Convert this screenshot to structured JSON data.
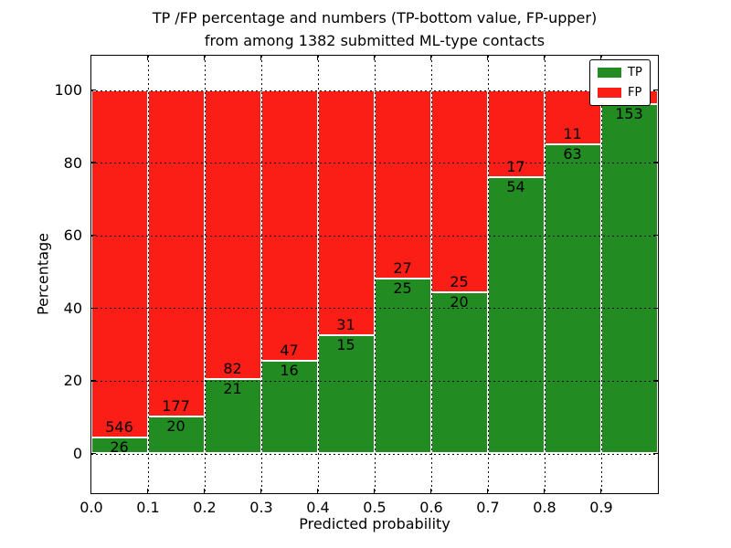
{
  "title": {
    "line1": "TP /FP percentage and numbers (TP-bottom value, FP-upper)",
    "line2": "from among 1382 submitted ML-type contacts"
  },
  "axes": {
    "xlabel": "Predicted probability",
    "ylabel": "Percentage",
    "x_tick_labels": [
      "0.0",
      "0.1",
      "0.2",
      "0.3",
      "0.4",
      "0.5",
      "0.6",
      "0.7",
      "0.8",
      "0.9"
    ],
    "y_tick_labels": [
      "0",
      "20",
      "40",
      "60",
      "80",
      "100"
    ],
    "y_tick_values": [
      0,
      20,
      40,
      60,
      80,
      100
    ]
  },
  "legend": {
    "items": [
      {
        "label": "TP",
        "color": "#228b22"
      },
      {
        "label": "FP",
        "color": "#fb1e16"
      }
    ]
  },
  "colors": {
    "tp": "#228b22",
    "fp": "#fb1e16",
    "grid": "#000000",
    "bar_edge": "#ffffff",
    "background": "#ffffff"
  },
  "chart_data": {
    "type": "bar",
    "stacked": true,
    "normalized": "percent",
    "title": "TP /FP percentage and numbers (TP-bottom value, FP-upper) from among 1382 submitted ML-type contacts",
    "xlabel": "Predicted probability",
    "ylabel": "Percentage",
    "x_bin_edges": [
      0.0,
      0.1,
      0.2,
      0.3,
      0.4,
      0.5,
      0.6,
      0.7,
      0.8,
      0.9,
      1.0
    ],
    "categories": [
      "0.0-0.1",
      "0.1-0.2",
      "0.2-0.3",
      "0.3-0.4",
      "0.4-0.5",
      "0.5-0.6",
      "0.6-0.7",
      "0.7-0.8",
      "0.8-0.9",
      "0.9-1.0"
    ],
    "series": [
      {
        "name": "TP",
        "values": [
          26,
          20,
          21,
          16,
          15,
          25,
          20,
          54,
          63,
          153
        ]
      },
      {
        "name": "FP",
        "values": [
          546,
          177,
          82,
          47,
          31,
          27,
          25,
          17,
          11,
          6
        ]
      }
    ],
    "tp_percent": [
      4.5,
      10.2,
      20.4,
      25.4,
      32.6,
      48.1,
      44.4,
      76.1,
      85.1,
      96.2
    ],
    "tp_labels": [
      "26",
      "20",
      "21",
      "16",
      "15",
      "25",
      "20",
      "54",
      "63",
      "153"
    ],
    "fp_labels": [
      "546",
      "177",
      "82",
      "47",
      "31",
      "27",
      "25",
      "17",
      "11",
      ""
    ],
    "total_contacts": 1382,
    "ylim": [
      0,
      100
    ],
    "grid": true,
    "legend_position": "upper right"
  }
}
